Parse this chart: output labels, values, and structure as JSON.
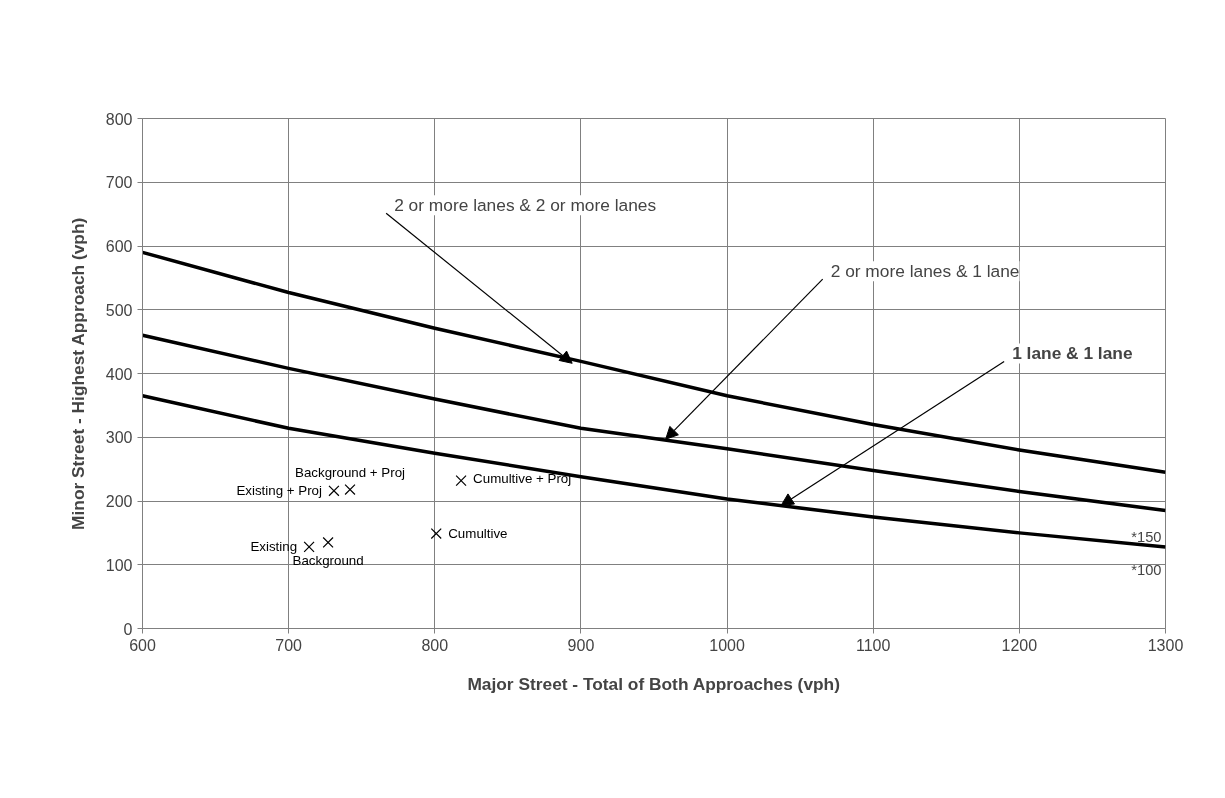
{
  "chart_data": {
    "type": "line",
    "xlabel": "Major Street - Total of Both Approaches (vph)",
    "ylabel": "Minor Street - Highest Approach (vph)",
    "xlim": [
      600,
      1300
    ],
    "ylim": [
      0,
      800
    ],
    "xticks": [
      600,
      700,
      800,
      900,
      1000,
      1100,
      1200,
      1300
    ],
    "yticks": [
      0,
      100,
      200,
      300,
      400,
      500,
      600,
      700,
      800
    ],
    "grid": true,
    "line_style": "solid",
    "series": [
      {
        "color": "#000000",
        "x": [
          600,
          700,
          800,
          900,
          1000,
          1100,
          1200,
          1300
        ],
        "values": [
          590,
          527,
          471,
          419,
          365,
          320,
          280,
          245
        ]
      },
      {
        "color": "#000000",
        "x": [
          600,
          700,
          800,
          900,
          1000,
          1100,
          1200,
          1300
        ],
        "values": [
          460,
          408,
          360,
          314,
          282,
          248,
          215,
          185
        ]
      },
      {
        "color": "#000000",
        "x": [
          600,
          700,
          800,
          900,
          1000,
          1100,
          1200,
          1300
        ],
        "values": [
          365,
          314,
          275,
          238,
          203,
          175,
          150,
          128
        ]
      },
      {
        "type": "scatter",
        "name": "Existing",
        "color": "#000000",
        "marker": "cross",
        "x": [
          714
        ],
        "values": [
          128
        ]
      },
      {
        "type": "scatter",
        "name": "Background",
        "color": "#000000",
        "marker": "cross",
        "x": [
          727
        ],
        "values": [
          135
        ]
      },
      {
        "type": "scatter",
        "name": "Existing + Proj",
        "color": "#000000",
        "marker": "cross",
        "x": [
          731
        ],
        "values": [
          216
        ]
      },
      {
        "type": "scatter",
        "name": "Background + Proj",
        "color": "#000000",
        "marker": "cross",
        "x": [
          742
        ],
        "values": [
          218
        ]
      },
      {
        "type": "scatter",
        "name": "Cumultive",
        "color": "#000000",
        "marker": "cross",
        "x": [
          801
        ],
        "values": [
          149
        ]
      },
      {
        "type": "scatter",
        "name": "Cumultive + Proj",
        "color": "#000000",
        "marker": "cross",
        "x": [
          818
        ],
        "values": [
          232
        ]
      }
    ],
    "annotations": [
      {
        "text": "2 or more lanes & 2 or more lanes",
        "x": 894,
        "y": 416
      },
      {
        "text": "2 or more lanes & 1 lane",
        "x": 958,
        "y": 297
      },
      {
        "text": "1 lane & 1 lane",
        "x": 1037,
        "y": 193
      },
      "*150",
      "*100"
    ]
  }
}
